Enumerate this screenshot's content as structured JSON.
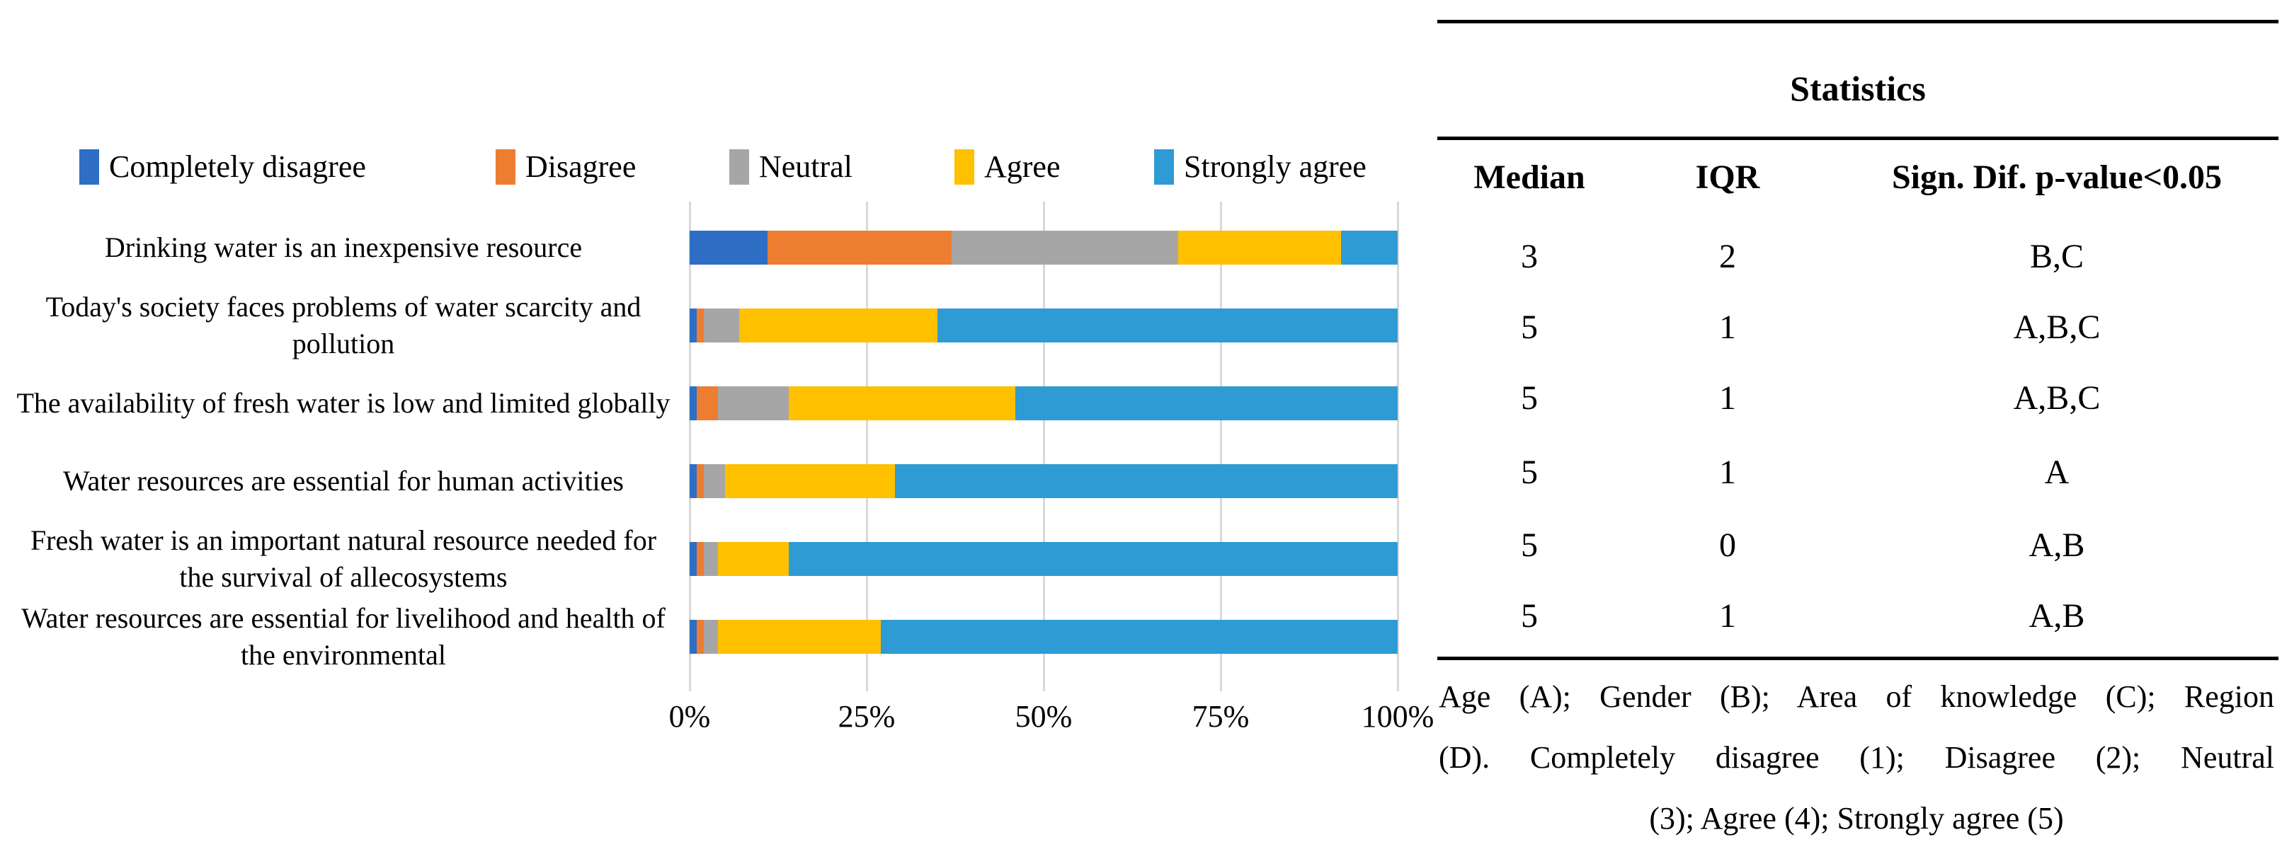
{
  "figure": {
    "background": "#FFFFFF",
    "gridline_color": "#D9D9D9"
  },
  "chart_data": {
    "type": "bar",
    "orientation": "horizontal_stacked",
    "stack_unit": "percent",
    "title": "",
    "xlabel": "",
    "ylabel": "",
    "xlim": [
      0,
      100
    ],
    "grid": true,
    "legend_position": "top",
    "x_ticks": [
      "0%",
      "25%",
      "50%",
      "75%",
      "100%"
    ],
    "categories": [
      "Drinking water is an inexpensive resource",
      "Today's society faces problems of water scarcity and pollution",
      "The availability of fresh water is low and limited globally",
      "Water resources are essential for human activities",
      "Fresh water is an important natural resource needed for the survival of allecosystems",
      "Water resources are essential for livelihood and health of the environmental"
    ],
    "series": [
      {
        "name": "Completely disagree",
        "color": "#2E6EC4",
        "values": [
          11,
          1,
          1,
          1,
          1,
          1
        ]
      },
      {
        "name": "Disagree",
        "color": "#ED7D31",
        "values": [
          26,
          1,
          3,
          1,
          1,
          1
        ]
      },
      {
        "name": "Neutral",
        "color": "#A6A6A6",
        "values": [
          32,
          5,
          10,
          3,
          2,
          2
        ]
      },
      {
        "name": "Agree",
        "color": "#FFC000",
        "values": [
          23,
          28,
          32,
          24,
          10,
          23
        ]
      },
      {
        "name": "Strongly agree",
        "color": "#2E9BD5",
        "values": [
          8,
          65,
          54,
          71,
          86,
          73
        ]
      }
    ]
  },
  "table": {
    "title": "Statistics",
    "columns": [
      "Median",
      "IQR",
      "Sign. Dif. p-value<0.05"
    ],
    "rows": [
      {
        "median": "3",
        "iqr": "2",
        "sig": "B,C"
      },
      {
        "median": "5",
        "iqr": "1",
        "sig": "A,B,C"
      },
      {
        "median": "5",
        "iqr": "1",
        "sig": "A,B,C"
      },
      {
        "median": "5",
        "iqr": "1",
        "sig": "A"
      },
      {
        "median": "5",
        "iqr": "0",
        "sig": "A,B"
      },
      {
        "median": "5",
        "iqr": "1",
        "sig": "A,B"
      }
    ],
    "footnote": {
      "line1": "Age (A); Gender (B); Area of knowledge (C); Region",
      "line2": "(D).  Completely disagree (1); Disagree (2); Neutral",
      "line3": "(3); Agree (4); Strongly agree (5)"
    }
  }
}
